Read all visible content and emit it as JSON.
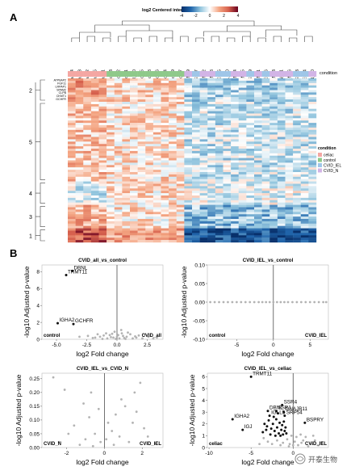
{
  "panels": {
    "a": "A",
    "b": "B"
  },
  "heatmap": {
    "legend_title": "log2 Centered intensity",
    "scale_ticks": [
      "-4",
      "-2",
      "0",
      "2",
      "4"
    ],
    "scale_colors": [
      "#08306b",
      "#2166ac",
      "#92c5de",
      "#ffffff",
      "#f4a582",
      "#d6604d",
      "#67001f"
    ],
    "columns": [
      "celiac_4",
      "celiac_3",
      "celiac_2",
      "celiac_5",
      "celiac_1",
      "control_3",
      "control_2",
      "control_1",
      "control_10",
      "control_5",
      "control_8",
      "control_6",
      "control_4",
      "control_9",
      "control_7",
      "CVID_N_9",
      "CVID_IEL_7",
      "CVID_N_2",
      "CVID_N_8",
      "CVID_IEL_5",
      "CVID_IEL_10",
      "CVID_N_4",
      "CVID_N_5",
      "CVID_IEL_9",
      "CVID_N_1",
      "CVID_IEL_6",
      "CVID_N_3",
      "CVID_N_11",
      "CVID_N_6",
      "CVID_IEL_3",
      "CVID_IEL_4",
      "CVID_N_10"
    ],
    "column_groups": [
      "celiac",
      "celiac",
      "celiac",
      "celiac",
      "celiac",
      "control",
      "control",
      "control",
      "control",
      "control",
      "control",
      "control",
      "control",
      "control",
      "control",
      "CVID_N",
      "CVID_IEL",
      "CVID_N",
      "CVID_N",
      "CVID_IEL",
      "CVID_IEL",
      "CVID_N",
      "CVID_N",
      "CVID_IEL",
      "CVID_N",
      "CVID_IEL",
      "CVID_N",
      "CVID_N",
      "CVID_N",
      "CVID_IEL",
      "CVID_IEL",
      "CVID_N"
    ],
    "condition_label": "condition",
    "legend": {
      "title": "condition",
      "items": [
        {
          "name": "celiac",
          "color": "#f4a7a3"
        },
        {
          "name": "control",
          "color": "#8fc98a"
        },
        {
          "name": "CVID_IEL",
          "color": "#9fc6e8"
        },
        {
          "name": "CVID_N",
          "color": "#d2b4e6"
        }
      ]
    },
    "clusters": [
      "2",
      "5",
      "4",
      "3",
      "1"
    ],
    "cluster_sizes": [
      10,
      34,
      10,
      10,
      6
    ],
    "row_labels_cluster2": [
      "ATP6AP2",
      "FGF11",
      "LRPAP1",
      "SPAM2",
      "CLPB",
      "CKMT1",
      "GCHFR"
    ]
  },
  "chart_data": [
    {
      "type": "scatter",
      "title": "CVID_all_vs_control",
      "xlabel": "log2 Fold change",
      "ylabel": "-log10 Adjusted p-value",
      "xlim": [
        -6.2,
        3.8
      ],
      "ylim": [
        0,
        8.8
      ],
      "xticks": [
        -5.0,
        -2.5,
        0.0,
        2.5
      ],
      "yticks": [
        0,
        2,
        4,
        6,
        8
      ],
      "corner_left": "control",
      "corner_right": "CVID_all",
      "labeled_points": [
        {
          "label": "DBNL",
          "x": -3.7,
          "y": 8.1
        },
        {
          "label": "TRMT11",
          "x": -4.2,
          "y": 7.6
        },
        {
          "label": "IGHA2",
          "x": -4.9,
          "y": 1.9
        },
        {
          "label": "GCHFR",
          "x": -3.6,
          "y": 1.8
        }
      ],
      "points": [
        [
          -0.3,
          0.2
        ],
        [
          0.2,
          0.1
        ],
        [
          0.5,
          0.4
        ],
        [
          -0.6,
          0.5
        ],
        [
          0.8,
          0.3
        ],
        [
          1.1,
          0.6
        ],
        [
          -0.9,
          0.7
        ],
        [
          1.6,
          0.2
        ],
        [
          2.1,
          0.1
        ],
        [
          -1.4,
          0.3
        ],
        [
          -1.8,
          0.2
        ],
        [
          0.1,
          0.5
        ],
        [
          -0.2,
          0.9
        ],
        [
          0.4,
          0.7
        ],
        [
          1.3,
          0.1
        ],
        [
          -2.4,
          0.4
        ],
        [
          0.6,
          0.15
        ],
        [
          -0.8,
          0.1
        ],
        [
          2.6,
          0.3
        ],
        [
          3.0,
          0.1
        ],
        [
          -1.1,
          0.45
        ],
        [
          0.9,
          0.8
        ],
        [
          -3.1,
          0.3
        ],
        [
          -0.5,
          0.25
        ],
        [
          1.8,
          0.45
        ],
        [
          0.0,
          0.3
        ],
        [
          -1.6,
          0.6
        ],
        [
          2.3,
          0.55
        ],
        [
          -2.0,
          0.15
        ],
        [
          0.35,
          1.1
        ],
        [
          -4.9,
          1.9
        ],
        [
          -3.6,
          1.8
        ],
        [
          -3.7,
          8.1
        ],
        [
          -4.2,
          7.6
        ],
        [
          -0.1,
          0.05
        ],
        [
          0.7,
          0.05
        ],
        [
          -1.2,
          0.05
        ],
        [
          1.5,
          0.35
        ],
        [
          -0.4,
          0.65
        ],
        [
          3.3,
          0.2
        ]
      ]
    },
    {
      "type": "scatter",
      "title": "CVID_IEL_vs_control",
      "xlabel": "log2 Fold change",
      "ylabel": "-log10 Adjusted p-value",
      "xlim": [
        -9,
        7.5
      ],
      "ylim": [
        -0.1,
        0.1
      ],
      "xticks": [
        -5,
        0,
        5
      ],
      "yticks": [
        -0.1,
        -0.05,
        0.0,
        0.05,
        0.1
      ],
      "corner_left": "control",
      "corner_right": "CVID_IEL",
      "points": [
        [
          -8.6,
          0
        ],
        [
          -8.0,
          0
        ],
        [
          -7.4,
          0
        ],
        [
          -6.8,
          0
        ],
        [
          -6.2,
          0
        ],
        [
          -5.6,
          0
        ],
        [
          -5.0,
          0
        ],
        [
          -4.4,
          0
        ],
        [
          -3.8,
          0
        ],
        [
          -3.2,
          0
        ],
        [
          -2.6,
          0
        ],
        [
          -2.0,
          0
        ],
        [
          -1.5,
          0
        ],
        [
          -1.0,
          0
        ],
        [
          -0.5,
          0
        ],
        [
          0.0,
          0
        ],
        [
          0.5,
          0
        ],
        [
          1.0,
          0
        ],
        [
          1.5,
          0
        ],
        [
          2.0,
          0
        ],
        [
          2.6,
          0
        ],
        [
          3.2,
          0
        ],
        [
          3.8,
          0
        ],
        [
          4.4,
          0
        ],
        [
          5.0,
          0
        ],
        [
          5.6,
          0
        ],
        [
          6.2,
          0
        ],
        [
          6.8,
          0
        ],
        [
          7.2,
          0
        ]
      ]
    },
    {
      "type": "scatter",
      "title": "CVID_IEL_vs_CVID_N",
      "xlabel": "log2 Fold change",
      "ylabel": "-log10 Adjusted p-value",
      "xlim": [
        -3.3,
        3.1
      ],
      "ylim": [
        0,
        0.27
      ],
      "xticks": [
        -2,
        0,
        2
      ],
      "yticks": [
        0.0,
        0.05,
        0.1,
        0.15,
        0.2,
        0.25
      ],
      "corner_left": "CVID_N",
      "corner_right": "CVID_IEL",
      "points": [
        [
          -2.7,
          0.255
        ],
        [
          -2.1,
          0.21
        ],
        [
          -0.7,
          0.2
        ],
        [
          1.9,
          0.235
        ],
        [
          1.1,
          0.15
        ],
        [
          0.6,
          0.12
        ],
        [
          1.5,
          0.09
        ],
        [
          -1.6,
          0.08
        ],
        [
          -0.5,
          0.05
        ],
        [
          -0.2,
          0.02
        ],
        [
          0.1,
          0.03
        ],
        [
          0.4,
          0.06
        ],
        [
          0.8,
          0.04
        ],
        [
          1.3,
          0.02
        ],
        [
          -1.0,
          0.03
        ],
        [
          -1.3,
          0.01
        ],
        [
          2.3,
          0.04
        ],
        [
          2.7,
          0.015
        ],
        [
          -2.4,
          0.02
        ],
        [
          0.2,
          0.09
        ],
        [
          -0.8,
          0.11
        ],
        [
          1.7,
          0.13
        ],
        [
          0.9,
          0.175
        ],
        [
          -0.3,
          0.14
        ],
        [
          2.1,
          0.07
        ],
        [
          -1.9,
          0.05
        ],
        [
          0.5,
          0.01
        ],
        [
          -0.6,
          0.005
        ],
        [
          1.6,
          0.2
        ],
        [
          -1.1,
          0.16
        ]
      ]
    },
    {
      "type": "scatter",
      "title": "CVID_IEL_vs_celiac",
      "xlabel": "log2 Fold change",
      "ylabel": "-log10 Adjusted p-value",
      "xlim": [
        -10.2,
        4.2
      ],
      "ylim": [
        0,
        6.3
      ],
      "xticks": [
        -10,
        -5,
        0
      ],
      "yticks": [
        0,
        1,
        2,
        3,
        4,
        5,
        6
      ],
      "corner_left": "celiac",
      "corner_right": "CVID_IEL",
      "labeled_points": [
        {
          "label": "TRMT11",
          "x": -5.0,
          "y": 6.0
        },
        {
          "label": "SSR4",
          "x": -1.3,
          "y": 3.6
        },
        {
          "label": "SSR1",
          "x": -2.0,
          "y": 3.1
        },
        {
          "label": "DNAJB11",
          "x": -1.1,
          "y": 3.0
        },
        {
          "label": "DBNL",
          "x": -3.0,
          "y": 3.1
        },
        {
          "label": "SRP54",
          "x": -1.0,
          "y": 2.7
        },
        {
          "label": "IGLL5",
          "x": -2.8,
          "y": 2.7
        },
        {
          "label": "BSPRY",
          "x": 1.4,
          "y": 2.1
        },
        {
          "label": "IGHA2",
          "x": -7.2,
          "y": 2.4
        },
        {
          "label": "IGJ",
          "x": -6.0,
          "y": 1.5
        }
      ],
      "significant_points": [
        [
          -3.4,
          2.0
        ],
        [
          -3.1,
          1.8
        ],
        [
          -2.9,
          2.3
        ],
        [
          -2.6,
          1.6
        ],
        [
          -2.4,
          2.0
        ],
        [
          -2.2,
          1.4
        ],
        [
          -2.0,
          2.4
        ],
        [
          -1.9,
          1.7
        ],
        [
          -1.7,
          1.2
        ],
        [
          -1.6,
          2.1
        ],
        [
          -1.4,
          1.5
        ],
        [
          -1.3,
          1.9
        ],
        [
          -1.2,
          1.1
        ],
        [
          -1.1,
          2.2
        ],
        [
          -1.0,
          1.4
        ],
        [
          -0.9,
          1.7
        ],
        [
          -3.6,
          1.3
        ],
        [
          -2.7,
          1.1
        ],
        [
          -2.1,
          1.0
        ],
        [
          -1.5,
          1.0
        ],
        [
          -3.2,
          1.5
        ],
        [
          -2.3,
          2.6
        ],
        [
          -1.8,
          2.9
        ],
        [
          -0.8,
          1.2
        ]
      ],
      "points": [
        [
          -0.4,
          0.3
        ],
        [
          0.2,
          0.5
        ],
        [
          0.6,
          0.2
        ],
        [
          -0.7,
          0.7
        ],
        [
          1.0,
          0.4
        ],
        [
          1.5,
          0.9
        ],
        [
          2.1,
          0.3
        ],
        [
          2.6,
          0.6
        ],
        [
          3.0,
          0.2
        ],
        [
          -1.2,
          0.4
        ],
        [
          -1.9,
          0.6
        ],
        [
          -2.5,
          0.3
        ],
        [
          0.4,
          0.9
        ],
        [
          -0.2,
          1.0
        ],
        [
          0.9,
          1.1
        ],
        [
          -3.0,
          0.5
        ],
        [
          -4.0,
          0.3
        ],
        [
          1.8,
          0.1
        ],
        [
          -0.5,
          0.1
        ],
        [
          0.0,
          0.2
        ],
        [
          1.2,
          0.6
        ],
        [
          -1.5,
          0.2
        ],
        [
          2.4,
          1.0
        ],
        [
          -3.5,
          0.8
        ],
        [
          3.4,
          0.4
        ]
      ]
    }
  ],
  "watermark": "开泰生物"
}
